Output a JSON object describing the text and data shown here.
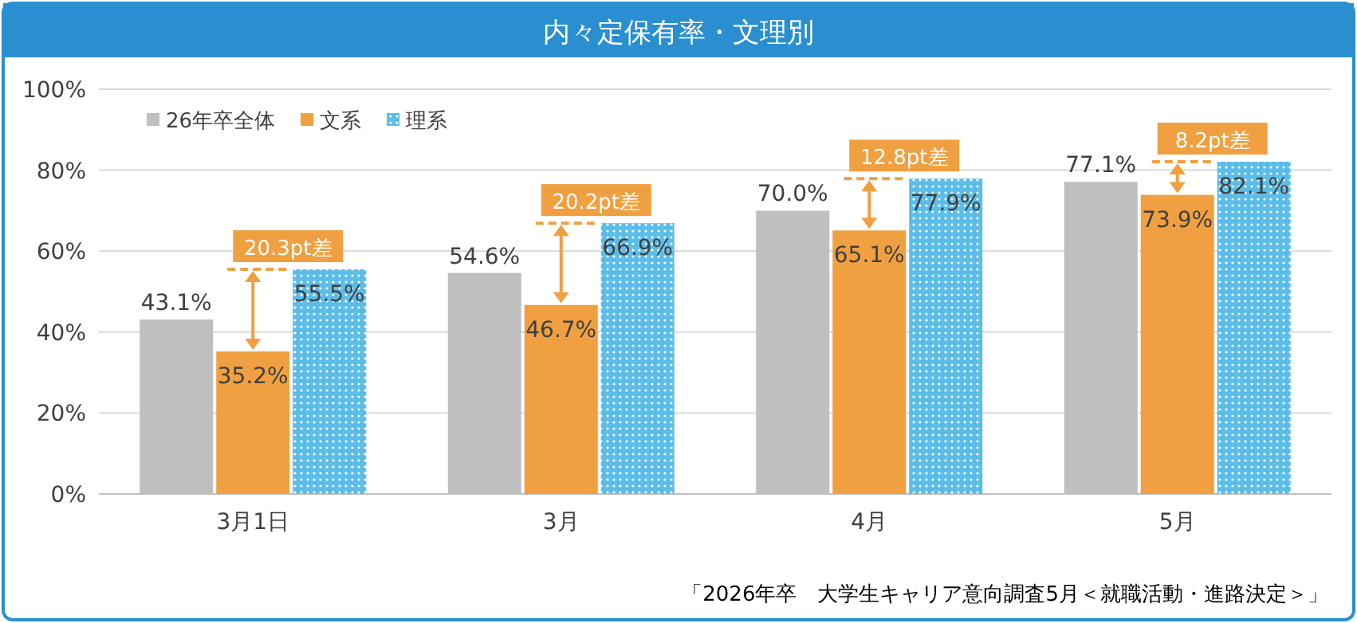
{
  "chart_data": {
    "type": "bar",
    "title": "内々定保有率・文理別",
    "categories": [
      "3月1日",
      "3月",
      "4月",
      "5月"
    ],
    "series": [
      {
        "name": "26年卒全体",
        "color": "#bfbfbf",
        "values": [
          43.1,
          54.6,
          70.0,
          77.1
        ],
        "value_labels": [
          "43.1%",
          "54.6%",
          "70.0%",
          "77.1%"
        ]
      },
      {
        "name": "文系",
        "color": "#f0a040",
        "values": [
          35.2,
          46.7,
          65.1,
          73.9
        ],
        "value_labels": [
          "35.2%",
          "46.7%",
          "65.1%",
          "73.9%"
        ]
      },
      {
        "name": "理系",
        "color": "#5bbde8",
        "values": [
          55.5,
          66.9,
          77.9,
          82.1
        ],
        "value_labels": [
          "55.5%",
          "66.9%",
          "77.9%",
          "82.1%"
        ]
      }
    ],
    "ylim": [
      0,
      100
    ],
    "yticks": [
      {
        "value": 0,
        "label": "0%"
      },
      {
        "value": 20,
        "label": "20%"
      },
      {
        "value": 40,
        "label": "40%"
      },
      {
        "value": 60,
        "label": "60%"
      },
      {
        "value": 80,
        "label": "80%"
      },
      {
        "value": 100,
        "label": "100%"
      }
    ],
    "grid": "y",
    "legend": "top left",
    "annotations": [
      "20.3pt差",
      "20.2pt差",
      "12.8pt差",
      "8.2pt差",
      "「2026年卒　大学生キャリア意向調査5月＜就職活動・進路決定＞」"
    ]
  }
}
